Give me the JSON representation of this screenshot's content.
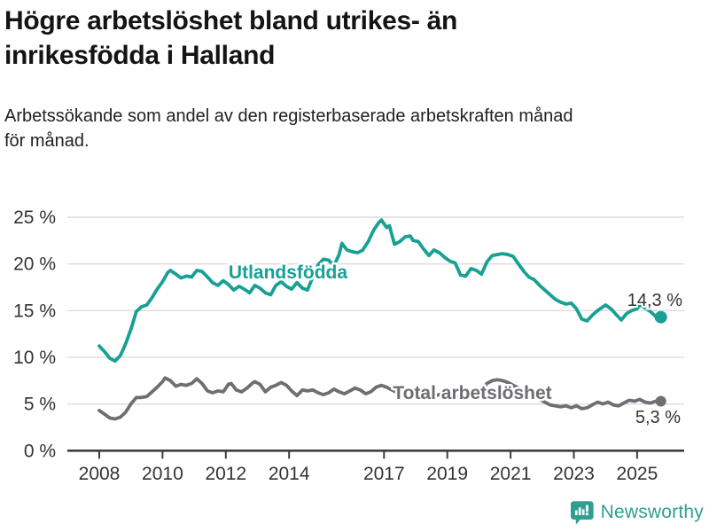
{
  "header": {
    "title": "Högre arbetslöshet bland utrikes- än inrikesfödda i Halland",
    "title_line1": "Högre arbetslöshet bland utrikes- än",
    "title_line2": "inrikesfödda i Halland",
    "subtitle": "Arbetssökande som andel av den registerbaserade arbetskraften månad för månad.",
    "subtitle_line1": "Arbetssökande som andel av den registerbaserade arbetskraften månad",
    "subtitle_line2": "för månad."
  },
  "footer": {
    "brand": "Newsworthy",
    "logo_icon": "bar-chart-speech-bubble-icon"
  },
  "colors": {
    "foreign_born_series": "#17a093",
    "total_series": "#6e6e73",
    "grid": "#dcdcdc",
    "axis": "#3d3d3d",
    "tick_text": "#333333",
    "brand_teal": "#2f9f92"
  },
  "chart_data": {
    "type": "line",
    "title": "Högre arbetslöshet bland utrikes- än inrikesfödda i Halland",
    "subtitle": "Arbetssökande som andel av den registerbaserade arbetskraften månad för månad.",
    "unit": "%",
    "grid": "horizontal",
    "legend_position": "inline-labels",
    "x_axis": {
      "range": [
        2008.0,
        2025.75
      ],
      "tick_years": [
        2008,
        2010,
        2012,
        2014,
        2017,
        2019,
        2021,
        2023,
        2025
      ],
      "tick_labels": [
        "2008",
        "2010",
        "2012",
        "2014",
        "2017",
        "2019",
        "2021",
        "2023",
        "2025"
      ]
    },
    "y_axis": {
      "range": [
        0,
        25
      ],
      "ticks": [
        {
          "value": 25,
          "label": "25 %"
        },
        {
          "value": 20,
          "label": "20 %"
        },
        {
          "value": 15,
          "label": "15 %"
        },
        {
          "value": 10,
          "label": "10 %"
        },
        {
          "value": 5,
          "label": "5 %"
        },
        {
          "value": 0,
          "label": "0 %"
        }
      ]
    },
    "series": [
      {
        "name": "Utlandsfödda",
        "color": "#17a093",
        "end_value": 14.3,
        "end_label": "14,3 %",
        "points": [
          [
            2008.0,
            11.2
          ],
          [
            2008.17,
            10.6
          ],
          [
            2008.33,
            9.9
          ],
          [
            2008.5,
            9.6
          ],
          [
            2008.67,
            10.2
          ],
          [
            2008.83,
            11.4
          ],
          [
            2009.0,
            13.0
          ],
          [
            2009.17,
            14.9
          ],
          [
            2009.33,
            15.4
          ],
          [
            2009.5,
            15.6
          ],
          [
            2009.67,
            16.4
          ],
          [
            2009.83,
            17.3
          ],
          [
            2010.0,
            18.1
          ],
          [
            2010.17,
            19.1
          ],
          [
            2010.25,
            19.3
          ],
          [
            2010.42,
            18.9
          ],
          [
            2010.58,
            18.5
          ],
          [
            2010.75,
            18.7
          ],
          [
            2010.92,
            18.6
          ],
          [
            2011.08,
            19.3
          ],
          [
            2011.25,
            19.2
          ],
          [
            2011.42,
            18.6
          ],
          [
            2011.58,
            18.0
          ],
          [
            2011.75,
            17.7
          ],
          [
            2011.92,
            18.2
          ],
          [
            2012.08,
            17.8
          ],
          [
            2012.25,
            17.2
          ],
          [
            2012.42,
            17.6
          ],
          [
            2012.58,
            17.3
          ],
          [
            2012.75,
            16.9
          ],
          [
            2012.92,
            17.7
          ],
          [
            2013.08,
            17.4
          ],
          [
            2013.25,
            16.9
          ],
          [
            2013.42,
            16.7
          ],
          [
            2013.58,
            17.7
          ],
          [
            2013.75,
            18.1
          ],
          [
            2013.92,
            17.6
          ],
          [
            2014.08,
            17.3
          ],
          [
            2014.25,
            18.0
          ],
          [
            2014.42,
            17.4
          ],
          [
            2014.58,
            17.2
          ],
          [
            2014.75,
            18.6
          ],
          [
            2014.92,
            19.9
          ],
          [
            2015.08,
            20.5
          ],
          [
            2015.25,
            20.4
          ],
          [
            2015.42,
            19.8
          ],
          [
            2015.58,
            21.0
          ],
          [
            2015.67,
            22.2
          ],
          [
            2015.83,
            21.5
          ],
          [
            2016.0,
            21.3
          ],
          [
            2016.17,
            21.2
          ],
          [
            2016.33,
            21.5
          ],
          [
            2016.5,
            22.4
          ],
          [
            2016.67,
            23.6
          ],
          [
            2016.83,
            24.4
          ],
          [
            2016.92,
            24.7
          ],
          [
            2017.08,
            23.9
          ],
          [
            2017.17,
            24.1
          ],
          [
            2017.33,
            22.1
          ],
          [
            2017.5,
            22.4
          ],
          [
            2017.67,
            22.9
          ],
          [
            2017.83,
            23.0
          ],
          [
            2017.92,
            22.5
          ],
          [
            2018.08,
            22.4
          ],
          [
            2018.25,
            21.6
          ],
          [
            2018.42,
            20.9
          ],
          [
            2018.58,
            21.5
          ],
          [
            2018.75,
            21.2
          ],
          [
            2018.92,
            20.7
          ],
          [
            2019.08,
            20.3
          ],
          [
            2019.25,
            20.1
          ],
          [
            2019.42,
            18.8
          ],
          [
            2019.58,
            18.7
          ],
          [
            2019.75,
            19.5
          ],
          [
            2019.92,
            19.3
          ],
          [
            2020.08,
            18.9
          ],
          [
            2020.25,
            20.2
          ],
          [
            2020.42,
            20.9
          ],
          [
            2020.58,
            21.0
          ],
          [
            2020.75,
            21.1
          ],
          [
            2020.92,
            21.0
          ],
          [
            2021.08,
            20.8
          ],
          [
            2021.25,
            20.0
          ],
          [
            2021.42,
            19.2
          ],
          [
            2021.58,
            18.6
          ],
          [
            2021.75,
            18.3
          ],
          [
            2021.92,
            17.7
          ],
          [
            2022.08,
            17.2
          ],
          [
            2022.25,
            16.7
          ],
          [
            2022.42,
            16.2
          ],
          [
            2022.58,
            15.9
          ],
          [
            2022.75,
            15.7
          ],
          [
            2022.92,
            15.8
          ],
          [
            2023.08,
            15.2
          ],
          [
            2023.25,
            14.1
          ],
          [
            2023.42,
            13.9
          ],
          [
            2023.58,
            14.5
          ],
          [
            2023.75,
            15.0
          ],
          [
            2023.92,
            15.4
          ],
          [
            2024.0,
            15.6
          ],
          [
            2024.17,
            15.2
          ],
          [
            2024.33,
            14.6
          ],
          [
            2024.5,
            14.0
          ],
          [
            2024.67,
            14.7
          ],
          [
            2024.83,
            15.0
          ],
          [
            2025.0,
            15.2
          ],
          [
            2025.08,
            15.6
          ],
          [
            2025.25,
            15.3
          ],
          [
            2025.42,
            14.9
          ],
          [
            2025.58,
            14.4
          ],
          [
            2025.75,
            14.3
          ]
        ]
      },
      {
        "name": "Total arbetslöshet",
        "color": "#6e6e73",
        "end_value": 5.3,
        "end_label": "5,3 %",
        "points": [
          [
            2008.0,
            4.3
          ],
          [
            2008.17,
            3.9
          ],
          [
            2008.33,
            3.5
          ],
          [
            2008.5,
            3.4
          ],
          [
            2008.67,
            3.6
          ],
          [
            2008.83,
            4.1
          ],
          [
            2009.0,
            5.0
          ],
          [
            2009.17,
            5.7
          ],
          [
            2009.33,
            5.7
          ],
          [
            2009.5,
            5.8
          ],
          [
            2009.67,
            6.3
          ],
          [
            2009.83,
            6.8
          ],
          [
            2010.0,
            7.4
          ],
          [
            2010.08,
            7.8
          ],
          [
            2010.25,
            7.5
          ],
          [
            2010.42,
            6.9
          ],
          [
            2010.58,
            7.1
          ],
          [
            2010.75,
            7.0
          ],
          [
            2010.92,
            7.2
          ],
          [
            2011.08,
            7.7
          ],
          [
            2011.25,
            7.2
          ],
          [
            2011.42,
            6.4
          ],
          [
            2011.58,
            6.2
          ],
          [
            2011.75,
            6.4
          ],
          [
            2011.92,
            6.3
          ],
          [
            2012.08,
            7.1
          ],
          [
            2012.17,
            7.2
          ],
          [
            2012.33,
            6.5
          ],
          [
            2012.5,
            6.3
          ],
          [
            2012.67,
            6.7
          ],
          [
            2012.83,
            7.2
          ],
          [
            2012.92,
            7.4
          ],
          [
            2013.08,
            7.1
          ],
          [
            2013.25,
            6.3
          ],
          [
            2013.42,
            6.8
          ],
          [
            2013.58,
            7.0
          ],
          [
            2013.75,
            7.3
          ],
          [
            2013.92,
            7.0
          ],
          [
            2014.08,
            6.4
          ],
          [
            2014.25,
            5.9
          ],
          [
            2014.42,
            6.5
          ],
          [
            2014.58,
            6.4
          ],
          [
            2014.75,
            6.5
          ],
          [
            2014.92,
            6.2
          ],
          [
            2015.08,
            6.0
          ],
          [
            2015.25,
            6.2
          ],
          [
            2015.42,
            6.6
          ],
          [
            2015.58,
            6.3
          ],
          [
            2015.75,
            6.1
          ],
          [
            2015.92,
            6.4
          ],
          [
            2016.08,
            6.7
          ],
          [
            2016.25,
            6.5
          ],
          [
            2016.42,
            6.1
          ],
          [
            2016.58,
            6.3
          ],
          [
            2016.75,
            6.8
          ],
          [
            2016.92,
            7.0
          ],
          [
            2017.08,
            6.8
          ],
          [
            2017.25,
            6.5
          ],
          [
            2017.42,
            6.2
          ],
          [
            2017.58,
            6.0
          ],
          [
            2017.75,
            6.2
          ],
          [
            2017.92,
            6.4
          ],
          [
            2018.08,
            6.2
          ],
          [
            2018.25,
            5.9
          ],
          [
            2018.42,
            5.7
          ],
          [
            2018.58,
            5.9
          ],
          [
            2018.75,
            6.0
          ],
          [
            2018.92,
            6.1
          ],
          [
            2019.08,
            6.0
          ],
          [
            2019.25,
            5.8
          ],
          [
            2019.42,
            5.9
          ],
          [
            2019.58,
            6.0
          ],
          [
            2019.75,
            6.1
          ],
          [
            2019.92,
            6.2
          ],
          [
            2020.08,
            6.3
          ],
          [
            2020.25,
            7.2
          ],
          [
            2020.42,
            7.5
          ],
          [
            2020.58,
            7.6
          ],
          [
            2020.75,
            7.5
          ],
          [
            2020.92,
            7.3
          ],
          [
            2021.08,
            7.0
          ],
          [
            2021.25,
            6.7
          ],
          [
            2021.42,
            6.4
          ],
          [
            2021.58,
            6.1
          ],
          [
            2021.75,
            5.8
          ],
          [
            2021.92,
            5.5
          ],
          [
            2022.08,
            5.2
          ],
          [
            2022.25,
            4.9
          ],
          [
            2022.42,
            4.8
          ],
          [
            2022.58,
            4.7
          ],
          [
            2022.75,
            4.8
          ],
          [
            2022.92,
            4.6
          ],
          [
            2023.08,
            4.8
          ],
          [
            2023.25,
            4.5
          ],
          [
            2023.42,
            4.6
          ],
          [
            2023.58,
            4.9
          ],
          [
            2023.75,
            5.2
          ],
          [
            2023.92,
            5.0
          ],
          [
            2024.08,
            5.2
          ],
          [
            2024.25,
            4.9
          ],
          [
            2024.42,
            4.8
          ],
          [
            2024.58,
            5.1
          ],
          [
            2024.75,
            5.4
          ],
          [
            2024.92,
            5.3
          ],
          [
            2025.08,
            5.5
          ],
          [
            2025.25,
            5.2
          ],
          [
            2025.42,
            5.1
          ],
          [
            2025.58,
            5.3
          ],
          [
            2025.75,
            5.3
          ]
        ]
      }
    ]
  }
}
